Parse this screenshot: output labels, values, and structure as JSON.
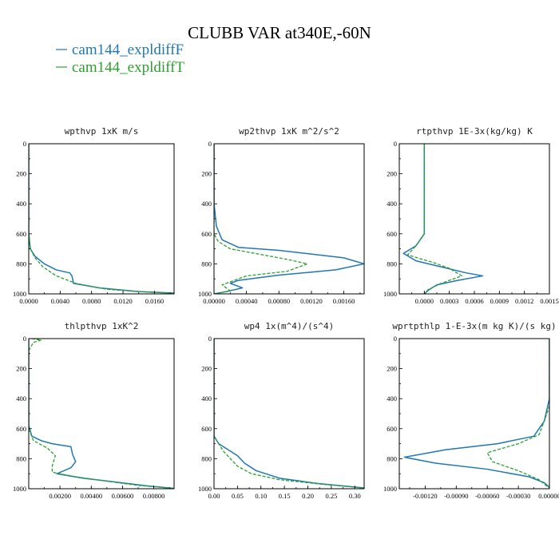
{
  "figure": {
    "title": "CLUBB VAR at340E,-60N",
    "legend": [
      {
        "label": "cam144_expldiffF",
        "color": "#1f77b4",
        "dash": "solid"
      },
      {
        "label": "cam144_expldiffT",
        "color": "#2ca02c",
        "dash": "dashed"
      }
    ]
  },
  "chart_data": [
    {
      "type": "line",
      "title": "wpthvp  1xK m/s",
      "xlim": [
        0,
        0.0185
      ],
      "ylim": [
        1000,
        0
      ],
      "xticks": [
        "0.0000",
        "0.0040",
        "0.0080",
        "0.0120",
        "0.0160"
      ],
      "xtick_values": [
        0,
        0.004,
        0.008,
        0.012,
        0.016
      ],
      "yticks": [
        "0",
        "200",
        "400",
        "600",
        "800",
        "1000"
      ],
      "ytick_values": [
        0,
        200,
        400,
        600,
        800,
        1000
      ],
      "series": [
        {
          "name": "cam144_expldiffF",
          "points": [
            [
              0,
              0
            ],
            [
              0,
              600
            ],
            [
              0.0002,
              700
            ],
            [
              0.0008,
              750
            ],
            [
              0.002,
              800
            ],
            [
              0.0035,
              840
            ],
            [
              0.0052,
              860
            ],
            [
              0.0055,
              880
            ],
            [
              0.0057,
              930
            ],
            [
              0.009,
              960
            ],
            [
              0.014,
              985
            ],
            [
              0.0185,
              995
            ]
          ]
        },
        {
          "name": "cam144_expldiffT",
          "points": [
            [
              0,
              0
            ],
            [
              0,
              600
            ],
            [
              0.0002,
              700
            ],
            [
              0.0008,
              760
            ],
            [
              0.0018,
              820
            ],
            [
              0.0035,
              880
            ],
            [
              0.006,
              930
            ],
            [
              0.01,
              970
            ],
            [
              0.015,
              988
            ],
            [
              0.0185,
              996
            ]
          ]
        }
      ]
    },
    {
      "type": "line",
      "title": "wp2thvp  1xK m^2/s^2",
      "xlim": [
        0,
        0.00185
      ],
      "ylim": [
        1000,
        0
      ],
      "xticks": [
        "0.00000",
        "0.00040",
        "0.00080",
        "0.00120",
        "0.00160"
      ],
      "xtick_values": [
        0,
        0.0004,
        0.0008,
        0.0012,
        0.0016
      ],
      "yticks": [
        "0",
        "200",
        "400",
        "600",
        "800",
        "1000"
      ],
      "ytick_values": [
        0,
        200,
        400,
        600,
        800,
        1000
      ],
      "series": [
        {
          "name": "cam144_expldiffF",
          "points": [
            [
              0,
              0
            ],
            [
              0,
              400
            ],
            [
              3e-05,
              550
            ],
            [
              0.0001,
              640
            ],
            [
              0.0003,
              690
            ],
            [
              0.0008,
              710
            ],
            [
              0.0016,
              760
            ],
            [
              0.00185,
              800
            ],
            [
              0.0015,
              840
            ],
            [
              0.0008,
              875
            ],
            [
              0.0003,
              910
            ],
            [
              0.0002,
              930
            ],
            [
              0.00035,
              960
            ],
            [
              0.00015,
              985
            ],
            [
              0,
              1000
            ]
          ]
        },
        {
          "name": "cam144_expldiffT",
          "points": [
            [
              0,
              0
            ],
            [
              0,
              600
            ],
            [
              5e-05,
              650
            ],
            [
              0.0002,
              700
            ],
            [
              0.0006,
              740
            ],
            [
              0.0009,
              770
            ],
            [
              0.00115,
              800
            ],
            [
              0.0009,
              850
            ],
            [
              0.0004,
              880
            ],
            [
              0.00025,
              910
            ],
            [
              0.0001,
              940
            ],
            [
              0.0002,
              980
            ],
            [
              0,
              1000
            ]
          ]
        }
      ]
    },
    {
      "type": "line",
      "title": "rtpthvp  1E-3x(kg/kg) K",
      "xlim": [
        -0.0003,
        0.0015
      ],
      "ylim": [
        1000,
        0
      ],
      "xticks": [
        "0.0000",
        "0.0003",
        "0.0006",
        "0.0009",
        "0.0012",
        "0.0015"
      ],
      "xtick_values": [
        0,
        0.0003,
        0.0006,
        0.0009,
        0.0012,
        0.0015
      ],
      "yticks": [
        "0",
        "200",
        "400",
        "600",
        "800",
        "1000"
      ],
      "ytick_values": [
        0,
        200,
        400,
        600,
        800,
        1000
      ],
      "series": [
        {
          "name": "cam144_expldiffF",
          "points": [
            [
              0,
              0
            ],
            [
              0,
              600
            ],
            [
              -0.0001,
              680
            ],
            [
              -0.00025,
              730
            ],
            [
              -0.0001,
              780
            ],
            [
              0.0002,
              820
            ],
            [
              0.0005,
              860
            ],
            [
              0.0007,
              880
            ],
            [
              0.0004,
              910
            ],
            [
              0.00015,
              940
            ],
            [
              5e-05,
              975
            ],
            [
              0,
              1000
            ]
          ]
        },
        {
          "name": "cam144_expldiffT",
          "points": [
            [
              0,
              0
            ],
            [
              0,
              600
            ],
            [
              -0.0001,
              680
            ],
            [
              -0.0002,
              740
            ],
            [
              0.0001,
              790
            ],
            [
              0.0003,
              830
            ],
            [
              0.00045,
              880
            ],
            [
              0.0002,
              930
            ],
            [
              5e-05,
              970
            ],
            [
              0,
              1000
            ]
          ]
        }
      ]
    },
    {
      "type": "line",
      "title": "thlpthvp  1xK^2",
      "xlim": [
        0,
        0.0093
      ],
      "ylim": [
        1000,
        0
      ],
      "xticks": [
        "0.00200",
        "0.00400",
        "0.00600",
        "0.00800"
      ],
      "xtick_values": [
        0.002,
        0.004,
        0.006,
        0.008
      ],
      "yticks": [
        "0",
        "200",
        "400",
        "600",
        "800",
        "1000"
      ],
      "ytick_values": [
        0,
        200,
        400,
        600,
        800,
        1000
      ],
      "series": [
        {
          "name": "cam144_expldiffF",
          "points": [
            [
              0,
              0
            ],
            [
              0,
              580
            ],
            [
              0.0002,
              650
            ],
            [
              0.0008,
              680
            ],
            [
              0.0015,
              700
            ],
            [
              0.0027,
              720
            ],
            [
              0.0028,
              770
            ],
            [
              0.003,
              820
            ],
            [
              0.0027,
              860
            ],
            [
              0.0018,
              900
            ],
            [
              0.0035,
              930
            ],
            [
              0.0055,
              955
            ],
            [
              0.0075,
              980
            ],
            [
              0.0093,
              998
            ]
          ]
        },
        {
          "name": "cam144_expldiffT",
          "points": [
            [
              0.0002,
              0
            ],
            [
              0.0008,
              10
            ],
            [
              0.0003,
              25
            ],
            [
              0,
              80
            ],
            [
              0,
              600
            ],
            [
              0.0003,
              680
            ],
            [
              0.0012,
              730
            ],
            [
              0.0017,
              780
            ],
            [
              0.0015,
              850
            ],
            [
              0.0015,
              890
            ],
            [
              0.003,
              920
            ],
            [
              0.005,
              950
            ],
            [
              0.007,
              978
            ],
            [
              0.0093,
              998
            ]
          ]
        }
      ]
    },
    {
      "type": "line",
      "title": "wp4  1x(m^4)/(s^4)",
      "xlim": [
        0,
        0.32
      ],
      "ylim": [
        1000,
        0
      ],
      "xticks": [
        "0.00",
        "0.05",
        "0.10",
        "0.15",
        "0.20",
        "0.25",
        "0.30"
      ],
      "xtick_values": [
        0,
        0.05,
        0.1,
        0.15,
        0.2,
        0.25,
        0.3
      ],
      "yticks": [
        "0",
        "200",
        "400",
        "600",
        "800",
        "1000"
      ],
      "ytick_values": [
        0,
        200,
        400,
        600,
        800,
        1000
      ],
      "series": [
        {
          "name": "cam144_expldiffF",
          "points": [
            [
              0,
              0
            ],
            [
              0,
              650
            ],
            [
              0.01,
              700
            ],
            [
              0.03,
              740
            ],
            [
              0.05,
              780
            ],
            [
              0.065,
              830
            ],
            [
              0.09,
              880
            ],
            [
              0.14,
              930
            ],
            [
              0.22,
              965
            ],
            [
              0.32,
              995
            ]
          ]
        },
        {
          "name": "cam144_expldiffT",
          "points": [
            [
              0,
              0
            ],
            [
              0,
              650
            ],
            [
              0.01,
              700
            ],
            [
              0.02,
              750
            ],
            [
              0.035,
              800
            ],
            [
              0.05,
              850
            ],
            [
              0.08,
              900
            ],
            [
              0.14,
              940
            ],
            [
              0.23,
              970
            ],
            [
              0.32,
              995
            ]
          ]
        }
      ]
    },
    {
      "type": "line",
      "title": "wprtpthlp  1-E-3x(m kg K)/(s kg)",
      "xlim": [
        -0.00145,
        0
      ],
      "ylim": [
        1000,
        0
      ],
      "xticks": [
        "-0.00120",
        "-0.00090",
        "-0.00060",
        "-0.00030",
        "0.00000"
      ],
      "xtick_values": [
        -0.0012,
        -0.0009,
        -0.0006,
        -0.0003,
        0
      ],
      "yticks": [
        "0",
        "200",
        "400",
        "600",
        "800",
        "1000"
      ],
      "ytick_values": [
        0,
        200,
        400,
        600,
        800,
        1000
      ],
      "series": [
        {
          "name": "cam144_expldiffF",
          "points": [
            [
              0,
              0
            ],
            [
              0,
              400
            ],
            [
              -5e-05,
              550
            ],
            [
              -0.00015,
              650
            ],
            [
              -0.0005,
              700
            ],
            [
              -0.001,
              740
            ],
            [
              -0.0014,
              790
            ],
            [
              -0.0011,
              830
            ],
            [
              -0.0006,
              870
            ],
            [
              -0.0002,
              920
            ],
            [
              -5e-05,
              960
            ],
            [
              0,
              990
            ]
          ]
        },
        {
          "name": "cam144_expldiffT",
          "points": [
            [
              0,
              0
            ],
            [
              0,
              450
            ],
            [
              -5e-05,
              550
            ],
            [
              -0.0001,
              640
            ],
            [
              -0.0003,
              700
            ],
            [
              -0.0006,
              760
            ],
            [
              -0.00055,
              820
            ],
            [
              -0.0003,
              880
            ],
            [
              -0.0001,
              940
            ],
            [
              -3e-05,
              980
            ],
            [
              0,
              995
            ]
          ]
        }
      ]
    }
  ]
}
